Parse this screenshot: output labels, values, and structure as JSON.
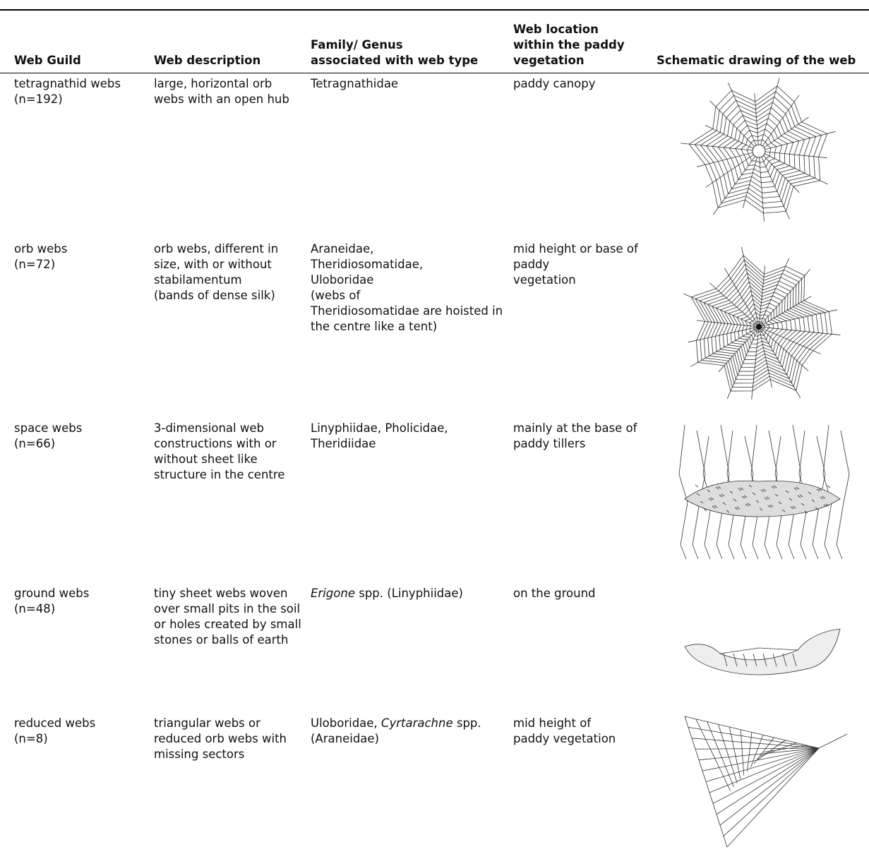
{
  "table": {
    "header": [
      "Web Guild",
      "Web description",
      "Family/ Genus\nassociated with web type",
      "Web location\nwithin the paddy\nvegetation",
      "Schematic drawing of the web"
    ],
    "rows": [
      [
        "tetragnathid webs\n(n=192)",
        "large, horizontal orb webs with an open hub",
        "Tetragnathidae",
        "paddy canopy"
      ],
      [
        "orb webs\n(n=72)",
        "orb webs, different in size, with or without\nstabilamentum\n(bands of dense silk)",
        "Araneidae,\nTheridiosomatidae,\nUloboridae\n(webs of\nTheridiosomatidae are hoisted in the centre like a tent)",
        "mid height or base of paddy\nvegetation"
      ],
      [
        "space webs\n(n=66)",
        "3-dimensional web constructions with or without sheet like structure in the centre",
        "Linyphiidae, Pholicidae,\nTheridiidae",
        "mainly at the base of paddy tillers"
      ],
      [
        "ground webs\n(n=48)",
        "tiny sheet webs woven over small pits in the soil or holes created by small stones or balls of earth",
        [
          {
            "text": "Erigone",
            "italic": true
          },
          {
            "text": " spp. (Linyphiidae)",
            "italic": false
          }
        ],
        "on the ground"
      ],
      [
        "reduced webs\n(n=8)",
        "triangular webs or reduced orb webs with missing sectors",
        [
          {
            "text": "Uloboridae, ",
            "italic": false
          },
          {
            "text": "Cyrtarachne",
            "italic": true
          },
          {
            "text": " spp. (Araneidae)",
            "italic": false
          }
        ],
        "mid height of\npaddy vegetation"
      ]
    ]
  }
}
